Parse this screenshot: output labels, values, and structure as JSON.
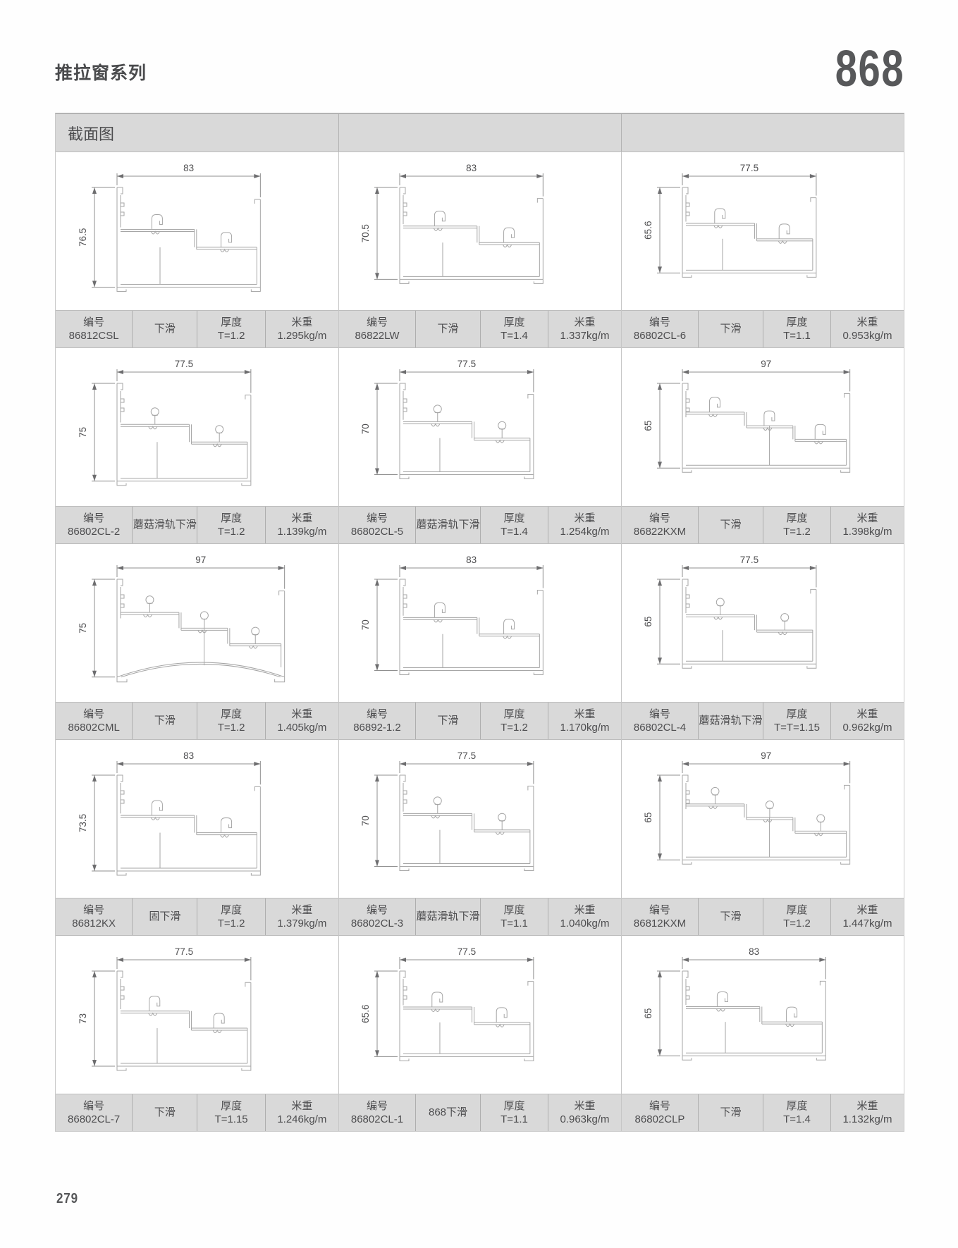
{
  "header": {
    "series_title": "推拉窗系列",
    "series_number": "868"
  },
  "table": {
    "section_label": "截面图"
  },
  "labels": {
    "code": "编号",
    "thickness": "厚度",
    "weight": "米重"
  },
  "colors": {
    "band": "#d9d9d9",
    "drawing_line": "#a6a6a6",
    "text": "#4d4d4f"
  },
  "cells": [
    {
      "code": "86812CSL",
      "type": "下滑",
      "thickness": "T=1.2",
      "weight": "1.295kg/m",
      "dim_w": "83",
      "dim_h": "76.5",
      "profile": {
        "steps": 2,
        "rail": "hook",
        "arc": false
      }
    },
    {
      "code": "86822LW",
      "type": "下滑",
      "thickness": "T=1.4",
      "weight": "1.337kg/m",
      "dim_w": "83",
      "dim_h": "70.5",
      "profile": {
        "steps": 2,
        "rail": "hook",
        "arc": false
      }
    },
    {
      "code": "86802CL-6",
      "type": "下滑",
      "thickness": "T=1.1",
      "weight": "0.953kg/m",
      "dim_w": "77.5",
      "dim_h": "65.6",
      "profile": {
        "steps": 2,
        "rail": "hook",
        "arc": false
      }
    },
    {
      "code": "86802CL-2",
      "type": "蘑菇滑轨下滑",
      "thickness": "T=1.2",
      "weight": "1.139kg/m",
      "dim_w": "77.5",
      "dim_h": "75",
      "profile": {
        "steps": 2,
        "rail": "mushroom",
        "arc": false
      }
    },
    {
      "code": "86802CL-5",
      "type": "蘑菇滑轨下滑",
      "thickness": "T=1.4",
      "weight": "1.254kg/m",
      "dim_w": "77.5",
      "dim_h": "70",
      "profile": {
        "steps": 2,
        "rail": "mushroom",
        "arc": false
      }
    },
    {
      "code": "86822KXM",
      "type": "下滑",
      "thickness": "T=1.2",
      "weight": "1.398kg/m",
      "dim_w": "97",
      "dim_h": "65",
      "profile": {
        "steps": 3,
        "rail": "hook",
        "arc": false
      }
    },
    {
      "code": "86802CML",
      "type": "下滑",
      "thickness": "T=1.2",
      "weight": "1.405kg/m",
      "dim_w": "97",
      "dim_h": "75",
      "profile": {
        "steps": 3,
        "rail": "mushroom",
        "arc": true
      }
    },
    {
      "code": "86892-1.2",
      "type": "下滑",
      "thickness": "T=1.2",
      "weight": "1.170kg/m",
      "dim_w": "83",
      "dim_h": "70",
      "profile": {
        "steps": 2,
        "rail": "hook",
        "arc": false
      }
    },
    {
      "code": "86802CL-4",
      "type": "蘑菇滑轨下滑",
      "thickness": "T=T=1.15",
      "weight": "0.962kg/m",
      "dim_w": "77.5",
      "dim_h": "65",
      "profile": {
        "steps": 2,
        "rail": "mushroom",
        "arc": false
      }
    },
    {
      "code": "86812KX",
      "type": "固下滑",
      "thickness": "T=1.2",
      "weight": "1.379kg/m",
      "dim_w": "83",
      "dim_h": "73.5",
      "profile": {
        "steps": 2,
        "rail": "hook",
        "arc": false
      }
    },
    {
      "code": "86802CL-3",
      "type": "蘑菇滑轨下滑",
      "thickness": "T=1.1",
      "weight": "1.040kg/m",
      "dim_w": "77.5",
      "dim_h": "70",
      "profile": {
        "steps": 2,
        "rail": "mushroom",
        "arc": false
      }
    },
    {
      "code": "86812KXM",
      "type": "下滑",
      "thickness": "T=1.2",
      "weight": "1.447kg/m",
      "dim_w": "97",
      "dim_h": "65",
      "profile": {
        "steps": 3,
        "rail": "mushroom",
        "arc": false
      }
    },
    {
      "code": "86802CL-7",
      "type": "下滑",
      "thickness": "T=1.15",
      "weight": "1.246kg/m",
      "dim_w": "77.5",
      "dim_h": "73",
      "profile": {
        "steps": 2,
        "rail": "hook",
        "arc": false
      }
    },
    {
      "code": "86802CL-1",
      "type": "868下滑",
      "thickness": "T=1.1",
      "weight": "0.963kg/m",
      "dim_w": "77.5",
      "dim_h": "65.6",
      "profile": {
        "steps": 2,
        "rail": "hook",
        "arc": false
      }
    },
    {
      "code": "86802CLP",
      "type": "下滑",
      "thickness": "T=1.4",
      "weight": "1.132kg/m",
      "dim_w": "83",
      "dim_h": "65",
      "profile": {
        "steps": 2,
        "rail": "hook",
        "arc": false
      }
    }
  ],
  "footer": {
    "page_number": "279"
  }
}
